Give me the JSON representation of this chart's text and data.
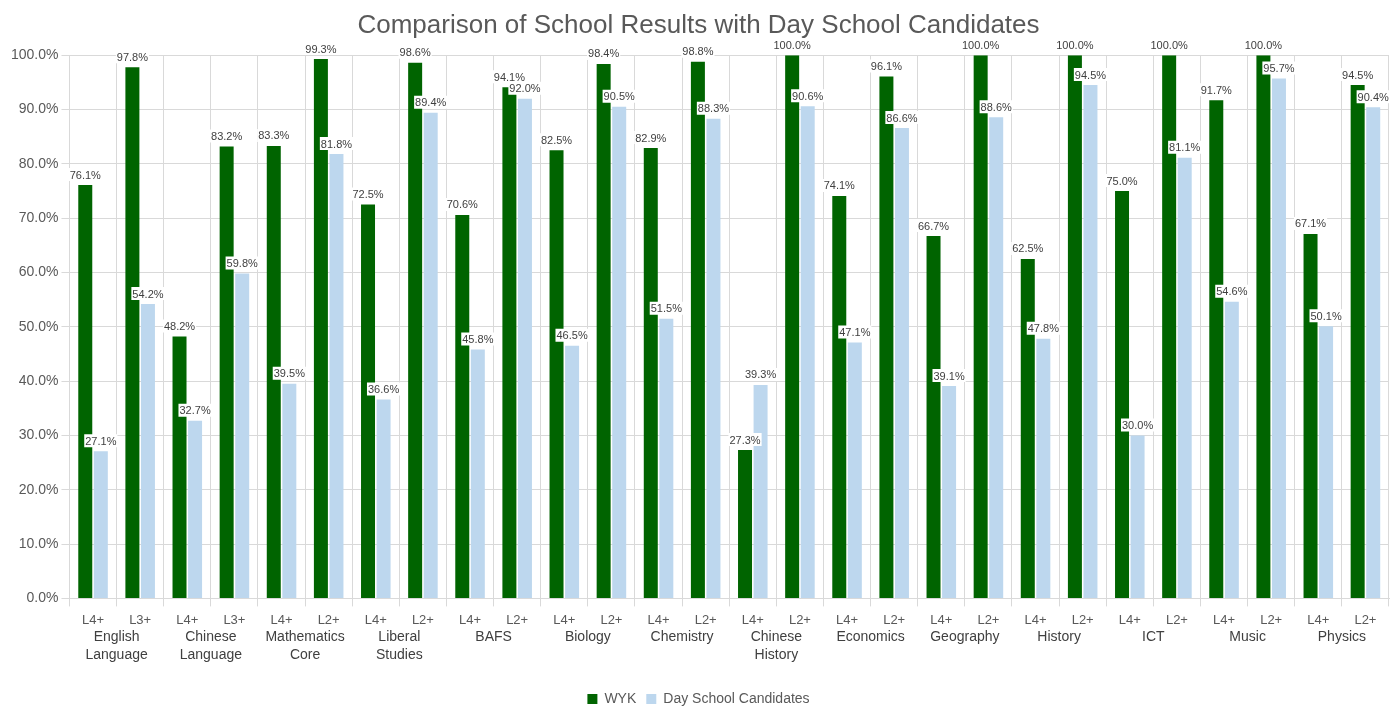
{
  "chart_data": {
    "type": "bar",
    "title": "Comparison of School Results with Day School Candidates",
    "categories": [
      "L4+",
      "L3+",
      "L4+",
      "L3+",
      "L4+",
      "L2+",
      "L4+",
      "L2+",
      "L4+",
      "L2+",
      "L4+",
      "L2+",
      "L4+",
      "L2+",
      "L4+",
      "L2+",
      "L4+",
      "L2+",
      "L4+",
      "L2+",
      "L4+",
      "L2+",
      "L4+",
      "L2+",
      "L4+",
      "L2+",
      "L4+",
      "L2+"
    ],
    "annotations": [
      "English Language",
      "Chinese Language",
      "Mathematics Core",
      "Liberal Studies",
      "BAFS",
      "Biology",
      "Chemistry",
      "Chinese History",
      "Economics",
      "Geography",
      "History",
      "ICT",
      "Music",
      "Physics"
    ],
    "series": [
      {
        "name": "WYK",
        "color": "#006400",
        "values": [
          76.1,
          97.8,
          48.2,
          83.2,
          83.3,
          99.3,
          72.5,
          98.6,
          70.6,
          94.1,
          82.5,
          98.4,
          82.9,
          98.8,
          27.3,
          100,
          74.1,
          96.1,
          66.7,
          100,
          62.5,
          100,
          75.0,
          100,
          91.7,
          100,
          67.1,
          94.5
        ],
        "value_labels": [
          "76.1%",
          "97.8%",
          "48.2%",
          "83.2%",
          "83.3%",
          "99.3%",
          "72.5%",
          "98.6%",
          "70.6%",
          "94.1%",
          "82.5%",
          "98.4%",
          "82.9%",
          "98.8%",
          "27.3%",
          "100.0%",
          "74.1%",
          "96.1%",
          "66.7%",
          "100.0%",
          "62.5%",
          "100.0%",
          "75.0%",
          "100.0%",
          "91.7%",
          "100.0%",
          "67.1%",
          "94.5%"
        ]
      },
      {
        "name": "Day School Candidates",
        "color": "#bdd7ee",
        "values": [
          27.1,
          54.2,
          32.7,
          59.8,
          39.5,
          81.8,
          36.6,
          89.4,
          45.8,
          92.0,
          46.5,
          90.5,
          51.5,
          88.3,
          39.3,
          90.6,
          47.1,
          86.6,
          39.1,
          88.6,
          47.8,
          94.5,
          30.0,
          81.1,
          54.6,
          95.7,
          50.1,
          90.4
        ],
        "value_labels": [
          "27.1%",
          "54.2%",
          "32.7%",
          "59.8%",
          "39.5%",
          "81.8%",
          "36.6%",
          "89.4%",
          "45.8%",
          "92.0%",
          "46.5%",
          "90.5%",
          "51.5%",
          "88.3%",
          "39.3%",
          "90.6%",
          "47.1%",
          "86.6%",
          "39.1%",
          "88.6%",
          "47.8%",
          "94.5%",
          "30.0%",
          "81.1%",
          "54.6%",
          "95.7%",
          "50.1%",
          "90.4%"
        ]
      }
    ],
    "ylim": [
      0,
      100
    ],
    "yticks": [
      {
        "value": 0,
        "label": "0.0%"
      },
      {
        "value": 10,
        "label": "10.0%"
      },
      {
        "value": 20,
        "label": "20.0%"
      },
      {
        "value": 30,
        "label": "30.0%"
      },
      {
        "value": 40,
        "label": "40.0%"
      },
      {
        "value": 50,
        "label": "50.0%"
      },
      {
        "value": 60,
        "label": "60.0%"
      },
      {
        "value": 70,
        "label": "70.0%"
      },
      {
        "value": 80,
        "label": "80.0%"
      },
      {
        "value": 90,
        "label": "90.0%"
      },
      {
        "value": 100,
        "label": "100.0%"
      }
    ],
    "grid": true,
    "legend": "bottom"
  }
}
